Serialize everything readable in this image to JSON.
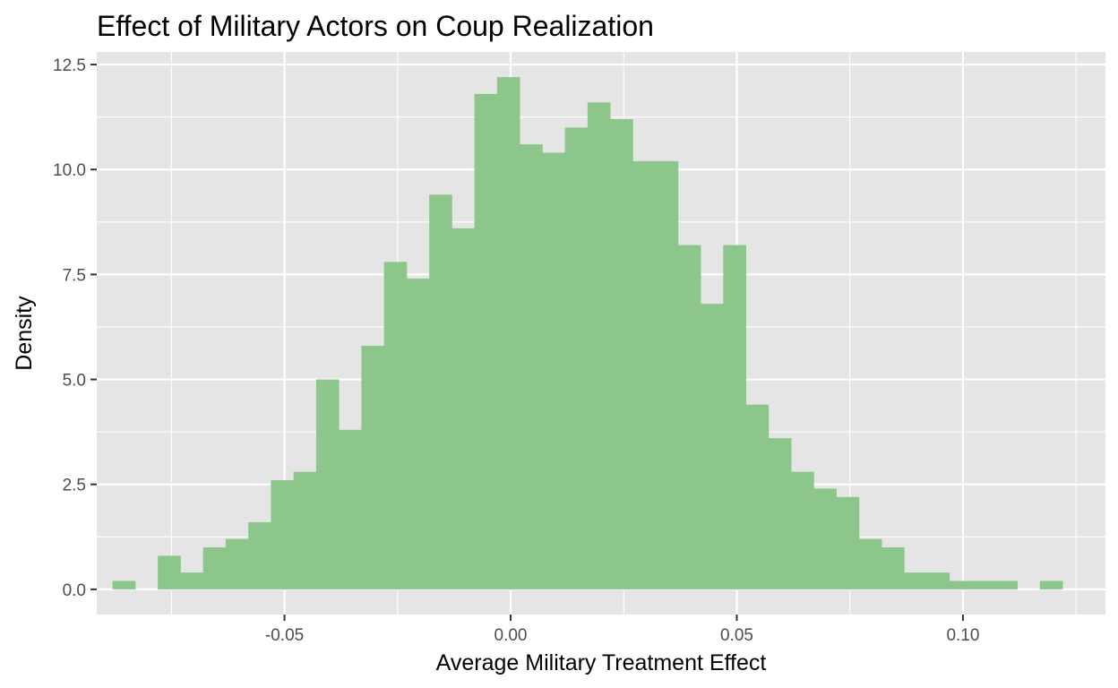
{
  "chart_data": {
    "type": "bar",
    "subtype": "histogram",
    "title": "Effect of Military Actors on Coup Realization",
    "xlabel": "Average Military Treatment Effect",
    "ylabel": "Density",
    "xlim": [
      -0.0915,
      0.1315
    ],
    "ylim": [
      -0.6,
      12.8
    ],
    "xticks": [
      {
        "value": -0.05,
        "label": "-0.05"
      },
      {
        "value": 0.0,
        "label": "0.00"
      },
      {
        "value": 0.05,
        "label": "0.05"
      },
      {
        "value": 0.1,
        "label": "0.10"
      }
    ],
    "yticks": [
      {
        "value": 0.0,
        "label": "0.0"
      },
      {
        "value": 2.5,
        "label": "2.5"
      },
      {
        "value": 5.0,
        "label": "5.0"
      },
      {
        "value": 7.5,
        "label": "7.5"
      },
      {
        "value": 10.0,
        "label": "10.0"
      },
      {
        "value": 12.5,
        "label": "12.5"
      }
    ],
    "grid": true,
    "fill_color": "#8dc68b",
    "panel_color": "#e5e5e5",
    "grid_color": "#ffffff",
    "bins": [
      {
        "x0": -0.088,
        "x1": -0.083,
        "density": 0.2
      },
      {
        "x0": -0.083,
        "x1": -0.078,
        "density": 0.0
      },
      {
        "x0": -0.078,
        "x1": -0.073,
        "density": 0.8
      },
      {
        "x0": -0.073,
        "x1": -0.068,
        "density": 0.4
      },
      {
        "x0": -0.068,
        "x1": -0.063,
        "density": 1.0
      },
      {
        "x0": -0.063,
        "x1": -0.058,
        "density": 1.2
      },
      {
        "x0": -0.058,
        "x1": -0.053,
        "density": 1.6
      },
      {
        "x0": -0.053,
        "x1": -0.048,
        "density": 2.6
      },
      {
        "x0": -0.048,
        "x1": -0.043,
        "density": 2.8
      },
      {
        "x0": -0.043,
        "x1": -0.038,
        "density": 5.0
      },
      {
        "x0": -0.038,
        "x1": -0.033,
        "density": 3.8
      },
      {
        "x0": -0.033,
        "x1": -0.028,
        "density": 5.8
      },
      {
        "x0": -0.028,
        "x1": -0.023,
        "density": 7.8
      },
      {
        "x0": -0.023,
        "x1": -0.018,
        "density": 7.4
      },
      {
        "x0": -0.018,
        "x1": -0.013,
        "density": 9.4
      },
      {
        "x0": -0.013,
        "x1": -0.008,
        "density": 8.6
      },
      {
        "x0": -0.008,
        "x1": -0.003,
        "density": 11.8
      },
      {
        "x0": -0.003,
        "x1": 0.002,
        "density": 12.2
      },
      {
        "x0": 0.002,
        "x1": 0.007,
        "density": 10.6
      },
      {
        "x0": 0.007,
        "x1": 0.012,
        "density": 10.4
      },
      {
        "x0": 0.012,
        "x1": 0.017,
        "density": 11.0
      },
      {
        "x0": 0.017,
        "x1": 0.022,
        "density": 11.6
      },
      {
        "x0": 0.022,
        "x1": 0.027,
        "density": 11.2
      },
      {
        "x0": 0.027,
        "x1": 0.032,
        "density": 10.2
      },
      {
        "x0": 0.032,
        "x1": 0.037,
        "density": 10.2
      },
      {
        "x0": 0.037,
        "x1": 0.042,
        "density": 8.2
      },
      {
        "x0": 0.042,
        "x1": 0.047,
        "density": 6.8
      },
      {
        "x0": 0.047,
        "x1": 0.052,
        "density": 8.2
      },
      {
        "x0": 0.052,
        "x1": 0.057,
        "density": 4.4
      },
      {
        "x0": 0.057,
        "x1": 0.062,
        "density": 3.6
      },
      {
        "x0": 0.062,
        "x1": 0.067,
        "density": 2.8
      },
      {
        "x0": 0.067,
        "x1": 0.072,
        "density": 2.4
      },
      {
        "x0": 0.072,
        "x1": 0.077,
        "density": 2.2
      },
      {
        "x0": 0.077,
        "x1": 0.082,
        "density": 1.2
      },
      {
        "x0": 0.082,
        "x1": 0.087,
        "density": 1.0
      },
      {
        "x0": 0.087,
        "x1": 0.092,
        "density": 0.4
      },
      {
        "x0": 0.092,
        "x1": 0.097,
        "density": 0.4
      },
      {
        "x0": 0.097,
        "x1": 0.102,
        "density": 0.2
      },
      {
        "x0": 0.102,
        "x1": 0.107,
        "density": 0.2
      },
      {
        "x0": 0.107,
        "x1": 0.112,
        "density": 0.2
      },
      {
        "x0": 0.112,
        "x1": 0.117,
        "density": 0.0
      },
      {
        "x0": 0.117,
        "x1": 0.122,
        "density": 0.2
      }
    ]
  }
}
